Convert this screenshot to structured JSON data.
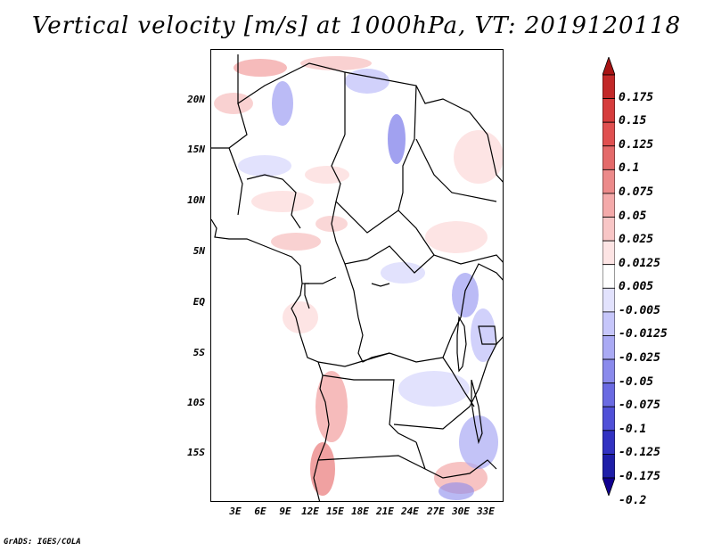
{
  "title": "Vertical velocity [m/s] at 1000hPa, VT: 2019120118",
  "map": {
    "lat_labels": [
      "20N",
      "15N",
      "10N",
      "5N",
      "EQ",
      "5S",
      "10S",
      "15S"
    ],
    "lon_labels": [
      "3E",
      "6E",
      "9E",
      "12E",
      "15E",
      "18E",
      "21E",
      "24E",
      "27E",
      "30E",
      "33E"
    ]
  },
  "colorbar": {
    "labels": [
      "0.175",
      "0.15",
      "0.125",
      "0.1",
      "0.075",
      "0.05",
      "0.025",
      "0.0125",
      "0.005",
      "-0.005",
      "-0.0125",
      "-0.025",
      "-0.05",
      "-0.075",
      "-0.1",
      "-0.125",
      "-0.175",
      "-0.2"
    ],
    "colors": [
      "#a81414",
      "#c22828",
      "#d63c3c",
      "#e05050",
      "#e46a6a",
      "#ec8a8a",
      "#f4aaaa",
      "#f8c6c6",
      "#fde4e4",
      "#ffffff",
      "#e2e2fd",
      "#c6c6fa",
      "#aaaaf4",
      "#8a8aec",
      "#6a6ae2",
      "#5050d8",
      "#3232c2",
      "#1e1ea8",
      "#100090"
    ]
  },
  "footer": "GrADS: IGES/COLA"
}
